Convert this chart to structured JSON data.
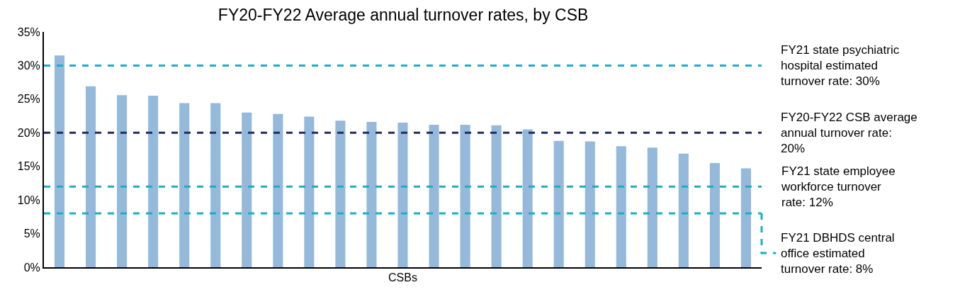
{
  "chart_data": {
    "type": "bar",
    "title": "FY20-FY22 Average annual turnover rates, by CSB",
    "xlabel": "CSBs",
    "categories": [
      null,
      null,
      null,
      null,
      null,
      null,
      null,
      null,
      null,
      null,
      null,
      null,
      null,
      null,
      null,
      null,
      null,
      null,
      null,
      null,
      null,
      null,
      null
    ],
    "values": [
      31.5,
      26.9,
      25.6,
      25.5,
      24.4,
      24.4,
      23.0,
      22.8,
      22.4,
      21.8,
      21.6,
      21.5,
      21.2,
      21.2,
      21.1,
      20.5,
      18.8,
      18.7,
      18.0,
      17.8,
      16.9,
      15.5,
      14.7
    ],
    "color": "#94b9db",
    "ylim": [
      0,
      35
    ],
    "yticks": [
      {
        "value": 0,
        "label": "0%"
      },
      {
        "value": 5,
        "label": "5%"
      },
      {
        "value": 10,
        "label": "10%"
      },
      {
        "value": 15,
        "label": "15%"
      },
      {
        "value": 20,
        "label": "20%"
      },
      {
        "value": 25,
        "label": "25%"
      },
      {
        "value": 30,
        "label": "30%"
      },
      {
        "value": 35,
        "label": "35%"
      }
    ],
    "tick_labels": "y",
    "ref_lines": [
      {
        "axis": "y",
        "value": 30,
        "label": "FY21 state psychiatric hospital estimated turnover rate: 30%",
        "color": "#1aafc4",
        "line_style": "dashed"
      },
      {
        "axis": "y",
        "value": 20,
        "label": "FY20-FY22 CSB average annual turnover rate: 20%",
        "color": "#252c5f",
        "line_style": "dashed"
      },
      {
        "axis": "y",
        "value": 12,
        "label": "FY21 state employee workforce turnover rate: 12%",
        "color": "#1aafc4",
        "line_style": "dashed"
      },
      {
        "axis": "y",
        "value": 8,
        "label": "FY21 DBHDS central office estimated turnover rate: 8%",
        "color": "#1aafc4",
        "line_style": "dashed"
      }
    ]
  }
}
